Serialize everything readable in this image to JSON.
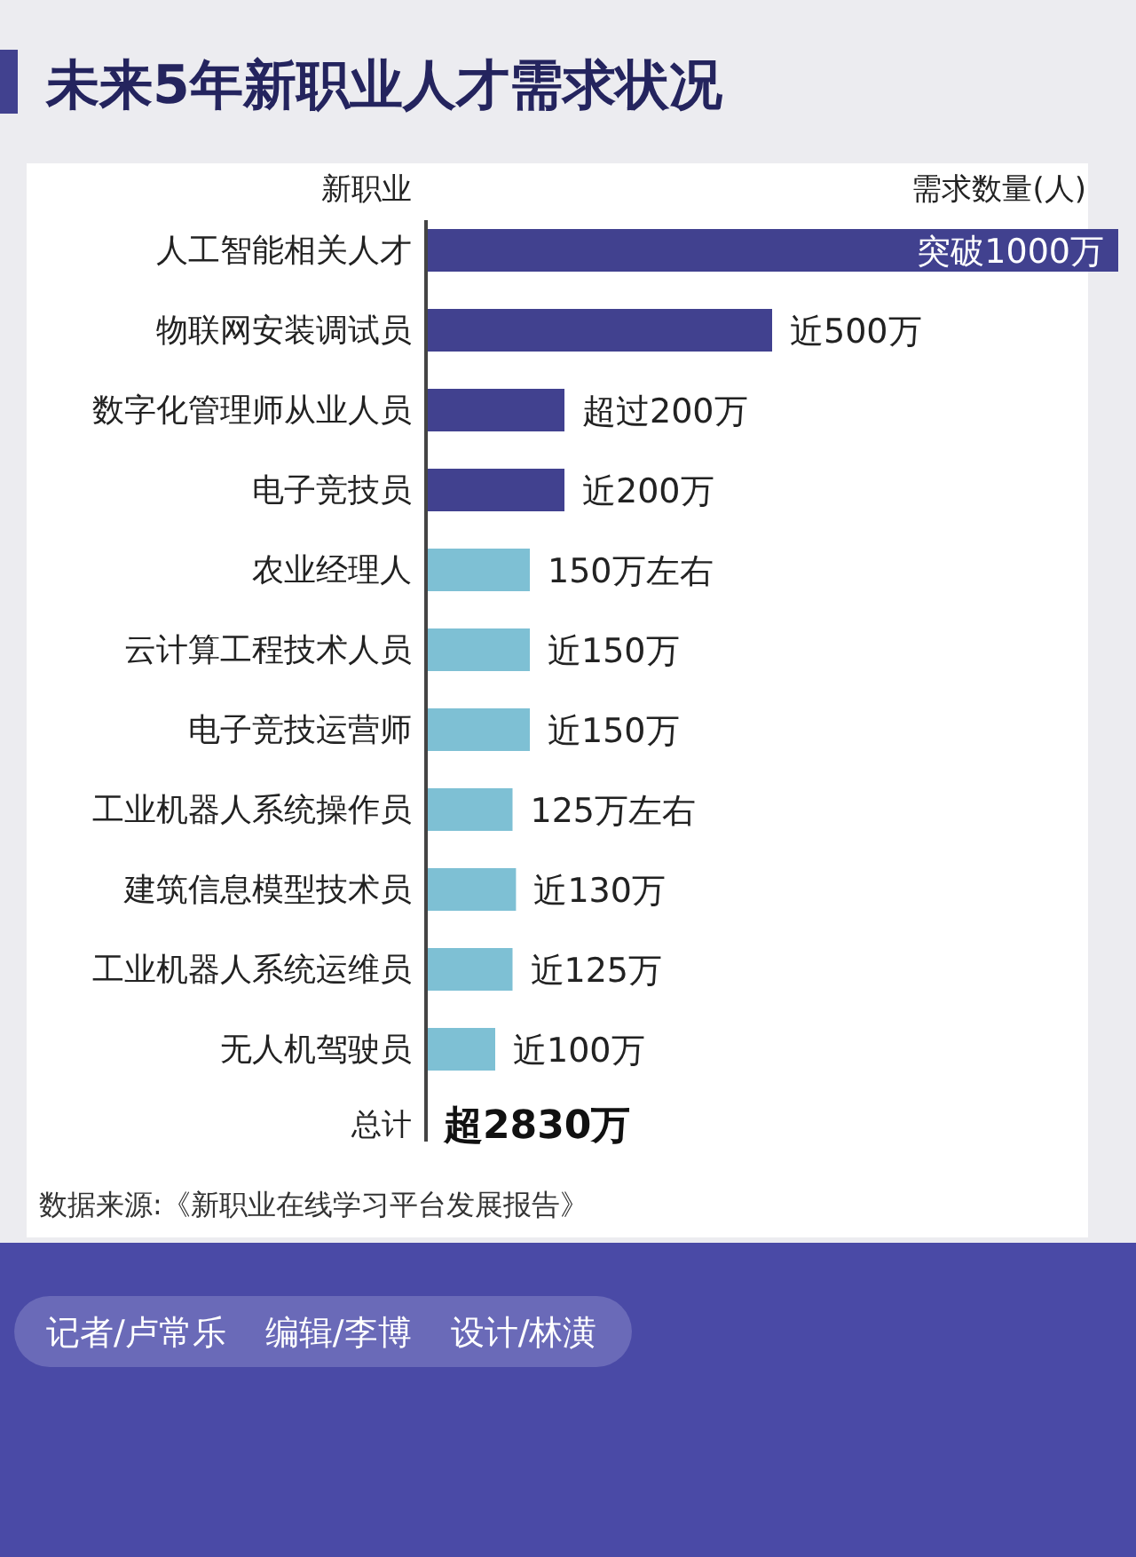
{
  "chart_data": {
    "type": "bar",
    "orientation": "horizontal",
    "title": "未来5年新职业人才需求状况",
    "ylabel": "新职业",
    "xlabel": "需求数量(人)",
    "categories": [
      "人工智能相关人才",
      "物联网安装调试员",
      "数字化管理师从业人员",
      "电子竞技员",
      "农业经理人",
      "云计算工程技术人员",
      "电子竞技运营师",
      "工业机器人系统操作员",
      "建筑信息模型技术员",
      "工业机器人系统运维员",
      "无人机驾驶员"
    ],
    "values": [
      1000,
      500,
      200,
      200,
      150,
      150,
      150,
      125,
      130,
      125,
      100
    ],
    "value_labels": [
      "突破1000万",
      "近500万",
      "超过200万",
      "近200万",
      "150万左右",
      "近150万",
      "近150万",
      "125万左右",
      "近130万",
      "近125万",
      "近100万"
    ],
    "colors": [
      "#41418f",
      "#41418f",
      "#41418f",
      "#41418f",
      "#7ec0d4",
      "#7ec0d4",
      "#7ec0d4",
      "#7ec0d4",
      "#7ec0d4",
      "#7ec0d4",
      "#7ec0d4"
    ],
    "annotations": [
      "总计",
      "超2830万",
      "数据来源:《新职业在线学习平台发展报告》",
      "记者/卢常乐",
      "编辑/李博",
      "设计/林潢"
    ]
  }
}
